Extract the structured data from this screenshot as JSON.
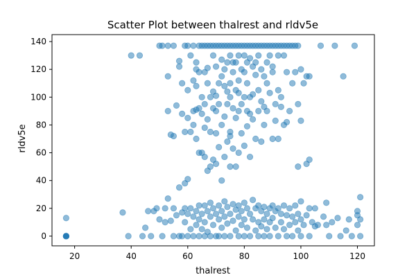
{
  "chart_data": {
    "type": "scatter",
    "title": "Scatter Plot between thalrest and rldv5e",
    "xlabel": "thalrest",
    "ylabel": "rldv5e",
    "xlim": [
      12,
      126
    ],
    "ylim": [
      -7,
      145
    ],
    "xticks": [
      20,
      40,
      60,
      80,
      100,
      120
    ],
    "yticks": [
      0,
      20,
      40,
      60,
      80,
      100,
      120,
      140
    ],
    "grid": false,
    "legend": "none",
    "marker_color": "#1f77b4",
    "marker_alpha": 0.5,
    "series": [
      {
        "points": [
          [
            17,
            0
          ],
          [
            17,
            0
          ],
          [
            17,
            0
          ],
          [
            17,
            0
          ],
          [
            17,
            0
          ],
          [
            17,
            13
          ],
          [
            37,
            17
          ],
          [
            39,
            0
          ],
          [
            40,
            130
          ],
          [
            43,
            130
          ],
          [
            44,
            0
          ],
          [
            45,
            6
          ],
          [
            46,
            18
          ],
          [
            47,
            0
          ],
          [
            48,
            18
          ],
          [
            49,
            20
          ],
          [
            50,
            12
          ],
          [
            50,
            137
          ],
          [
            51,
            137
          ],
          [
            51,
            0
          ],
          [
            52,
            10
          ],
          [
            52,
            20
          ],
          [
            53,
            115
          ],
          [
            53,
            90
          ],
          [
            53,
            27
          ],
          [
            53,
            137
          ],
          [
            54,
            73
          ],
          [
            54,
            11
          ],
          [
            55,
            137
          ],
          [
            55,
            72
          ],
          [
            55,
            20
          ],
          [
            55,
            0
          ],
          [
            56,
            15
          ],
          [
            56,
            94
          ],
          [
            57,
            35
          ],
          [
            57,
            0
          ],
          [
            57,
            122
          ],
          [
            57,
            126
          ],
          [
            58,
            110
          ],
          [
            58,
            88
          ],
          [
            58,
            17
          ],
          [
            58,
            0
          ],
          [
            59,
            137
          ],
          [
            59,
            75
          ],
          [
            59,
            38
          ],
          [
            59,
            20
          ],
          [
            59,
            10
          ],
          [
            60,
            137
          ],
          [
            60,
            105
          ],
          [
            60,
            85
          ],
          [
            60,
            41
          ],
          [
            60,
            16
          ],
          [
            60,
            0
          ],
          [
            61,
            130
          ],
          [
            61,
            75
          ],
          [
            61,
            20
          ],
          [
            61,
            5
          ],
          [
            62,
            137
          ],
          [
            62,
            112
          ],
          [
            62,
            90
          ],
          [
            62,
            80
          ],
          [
            62,
            14
          ],
          [
            62,
            0
          ],
          [
            63,
            125
          ],
          [
            63,
            120
          ],
          [
            63,
            108
          ],
          [
            63,
            91
          ],
          [
            63,
            70
          ],
          [
            63,
            18
          ],
          [
            63,
            8
          ],
          [
            64,
            137
          ],
          [
            64,
            118
          ],
          [
            64,
            92
          ],
          [
            64,
            60
          ],
          [
            64,
            22
          ],
          [
            64,
            12
          ],
          [
            64,
            0
          ],
          [
            65,
            137
          ],
          [
            65,
            100
          ],
          [
            65,
            88
          ],
          [
            65,
            60
          ],
          [
            65,
            16
          ],
          [
            65,
            5
          ],
          [
            66,
            137
          ],
          [
            66,
            118
          ],
          [
            66,
            95
          ],
          [
            66,
            78
          ],
          [
            66,
            57
          ],
          [
            66,
            22
          ],
          [
            66,
            10
          ],
          [
            66,
            0
          ],
          [
            67,
            137
          ],
          [
            67,
            121
          ],
          [
            67,
            110
          ],
          [
            67,
            84
          ],
          [
            67,
            47
          ],
          [
            67,
            18
          ],
          [
            67,
            3
          ],
          [
            68,
            137
          ],
          [
            68,
            100
          ],
          [
            68,
            75
          ],
          [
            68,
            50
          ],
          [
            68,
            24
          ],
          [
            68,
            14
          ],
          [
            68,
            0
          ],
          [
            69,
            137
          ],
          [
            69,
            130
          ],
          [
            69,
            104
          ],
          [
            69,
            92
          ],
          [
            69,
            55
          ],
          [
            69,
            20
          ],
          [
            69,
            8
          ],
          [
            70,
            137
          ],
          [
            70,
            122
          ],
          [
            70,
            101
          ],
          [
            70,
            90
          ],
          [
            70,
            74
          ],
          [
            70,
            52
          ],
          [
            70,
            16
          ],
          [
            70,
            0
          ],
          [
            71,
            137
          ],
          [
            71,
            110
          ],
          [
            71,
            95
          ],
          [
            71,
            64
          ],
          [
            71,
            22
          ],
          [
            71,
            12
          ],
          [
            71,
            0
          ],
          [
            72,
            137
          ],
          [
            72,
            127
          ],
          [
            72,
            115
          ],
          [
            72,
            80
          ],
          [
            72,
            40
          ],
          [
            72,
            18
          ],
          [
            72,
            6
          ],
          [
            73,
            137
          ],
          [
            73,
            120
          ],
          [
            73,
            108
          ],
          [
            73,
            86
          ],
          [
            73,
            57
          ],
          [
            73,
            25
          ],
          [
            73,
            14
          ],
          [
            73,
            0
          ],
          [
            74,
            137
          ],
          [
            74,
            125
          ],
          [
            74,
            104
          ],
          [
            74,
            95
          ],
          [
            74,
            68
          ],
          [
            74,
            21
          ],
          [
            74,
            9
          ],
          [
            75,
            137
          ],
          [
            75,
            130
          ],
          [
            75,
            110
          ],
          [
            75,
            100
          ],
          [
            75,
            75
          ],
          [
            75,
            72
          ],
          [
            75,
            50
          ],
          [
            75,
            16
          ],
          [
            75,
            0
          ],
          [
            76,
            137
          ],
          [
            76,
            125
          ],
          [
            76,
            118
          ],
          [
            76,
            92
          ],
          [
            76,
            63
          ],
          [
            76,
            23
          ],
          [
            76,
            11
          ],
          [
            77,
            137
          ],
          [
            77,
            125
          ],
          [
            77,
            105
          ],
          [
            77,
            85
          ],
          [
            77,
            50
          ],
          [
            77,
            19
          ],
          [
            77,
            4
          ],
          [
            78,
            137
          ],
          [
            78,
            130
          ],
          [
            78,
            112
          ],
          [
            78,
            103
          ],
          [
            78,
            90
          ],
          [
            78,
            60
          ],
          [
            78,
            22
          ],
          [
            78,
            14
          ],
          [
            78,
            0
          ],
          [
            79,
            137
          ],
          [
            79,
            120
          ],
          [
            79,
            95
          ],
          [
            79,
            74
          ],
          [
            79,
            18
          ],
          [
            79,
            8
          ],
          [
            80,
            137
          ],
          [
            80,
            130
          ],
          [
            80,
            118
          ],
          [
            80,
            100
          ],
          [
            80,
            65
          ],
          [
            80,
            24
          ],
          [
            80,
            12
          ],
          [
            80,
            0
          ],
          [
            81,
            137
          ],
          [
            81,
            125
          ],
          [
            81,
            110
          ],
          [
            81,
            90
          ],
          [
            81,
            79
          ],
          [
            81,
            20
          ],
          [
            81,
            6
          ],
          [
            82,
            137
          ],
          [
            82,
            128
          ],
          [
            82,
            100
          ],
          [
            82,
            88
          ],
          [
            82,
            57
          ],
          [
            82,
            16
          ],
          [
            82,
            0
          ],
          [
            83,
            137
          ],
          [
            83,
            122
          ],
          [
            83,
            102
          ],
          [
            83,
            84
          ],
          [
            83,
            26
          ],
          [
            83,
            12
          ],
          [
            84,
            137
          ],
          [
            84,
            125
          ],
          [
            84,
            116
          ],
          [
            84,
            70
          ],
          [
            84,
            20
          ],
          [
            84,
            4
          ],
          [
            85,
            137
          ],
          [
            85,
            130
          ],
          [
            85,
            105
          ],
          [
            85,
            90
          ],
          [
            85,
            22
          ],
          [
            85,
            10
          ],
          [
            85,
            0
          ],
          [
            86,
            137
          ],
          [
            86,
            120
          ],
          [
            86,
            97
          ],
          [
            86,
            68
          ],
          [
            86,
            18
          ],
          [
            86,
            7
          ],
          [
            87,
            137
          ],
          [
            87,
            115
          ],
          [
            87,
            93
          ],
          [
            87,
            80
          ],
          [
            87,
            21
          ],
          [
            87,
            12
          ],
          [
            87,
            0
          ],
          [
            88,
            137
          ],
          [
            88,
            125
          ],
          [
            88,
            110
          ],
          [
            88,
            90
          ],
          [
            88,
            16
          ],
          [
            88,
            5
          ],
          [
            89,
            137
          ],
          [
            89,
            130
          ],
          [
            89,
            103
          ],
          [
            89,
            20
          ],
          [
            89,
            10
          ],
          [
            89,
            0
          ],
          [
            90,
            137
          ],
          [
            90,
            122
          ],
          [
            90,
            118
          ],
          [
            90,
            70
          ],
          [
            90,
            22
          ],
          [
            90,
            13
          ],
          [
            91,
            137
          ],
          [
            91,
            95
          ],
          [
            91,
            83
          ],
          [
            91,
            18
          ],
          [
            91,
            6
          ],
          [
            92,
            137
          ],
          [
            92,
            130
          ],
          [
            92,
            105
          ],
          [
            92,
            70
          ],
          [
            92,
            20
          ],
          [
            92,
            0
          ],
          [
            93,
            137
          ],
          [
            93,
            100
          ],
          [
            93,
            93
          ],
          [
            93,
            16
          ],
          [
            93,
            10
          ],
          [
            94,
            137
          ],
          [
            94,
            130
          ],
          [
            94,
            80
          ],
          [
            94,
            22
          ],
          [
            94,
            5
          ],
          [
            95,
            137
          ],
          [
            95,
            118
          ],
          [
            95,
            82
          ],
          [
            95,
            15
          ],
          [
            95,
            0
          ],
          [
            96,
            137
          ],
          [
            96,
            90
          ],
          [
            96,
            20
          ],
          [
            96,
            8
          ],
          [
            97,
            137
          ],
          [
            97,
            110
          ],
          [
            97,
            14
          ],
          [
            97,
            0
          ],
          [
            98,
            137
          ],
          [
            98,
            118
          ],
          [
            98,
            22
          ],
          [
            98,
            10
          ],
          [
            99,
            137
          ],
          [
            99,
            95
          ],
          [
            99,
            50
          ],
          [
            99,
            16
          ],
          [
            99,
            4
          ],
          [
            100,
            120
          ],
          [
            100,
            83
          ],
          [
            100,
            25
          ],
          [
            100,
            12
          ],
          [
            100,
            0
          ],
          [
            101,
            110
          ],
          [
            101,
            8
          ],
          [
            102,
            115
          ],
          [
            102,
            52
          ],
          [
            102,
            15
          ],
          [
            103,
            115
          ],
          [
            103,
            55
          ],
          [
            103,
            20
          ],
          [
            103,
            0
          ],
          [
            104,
            10
          ],
          [
            105,
            20
          ],
          [
            105,
            7
          ],
          [
            106,
            8
          ],
          [
            107,
            137
          ],
          [
            108,
            14
          ],
          [
            109,
            24
          ],
          [
            109,
            8
          ],
          [
            110,
            0
          ],
          [
            111,
            10
          ],
          [
            112,
            137
          ],
          [
            113,
            13
          ],
          [
            114,
            0
          ],
          [
            115,
            115
          ],
          [
            116,
            4
          ],
          [
            117,
            12
          ],
          [
            118,
            0
          ],
          [
            119,
            137
          ],
          [
            120,
            18
          ],
          [
            120,
            8
          ],
          [
            121,
            28
          ],
          [
            121,
            12
          ],
          [
            121,
            0
          ],
          [
            120,
            15
          ]
        ]
      }
    ]
  }
}
